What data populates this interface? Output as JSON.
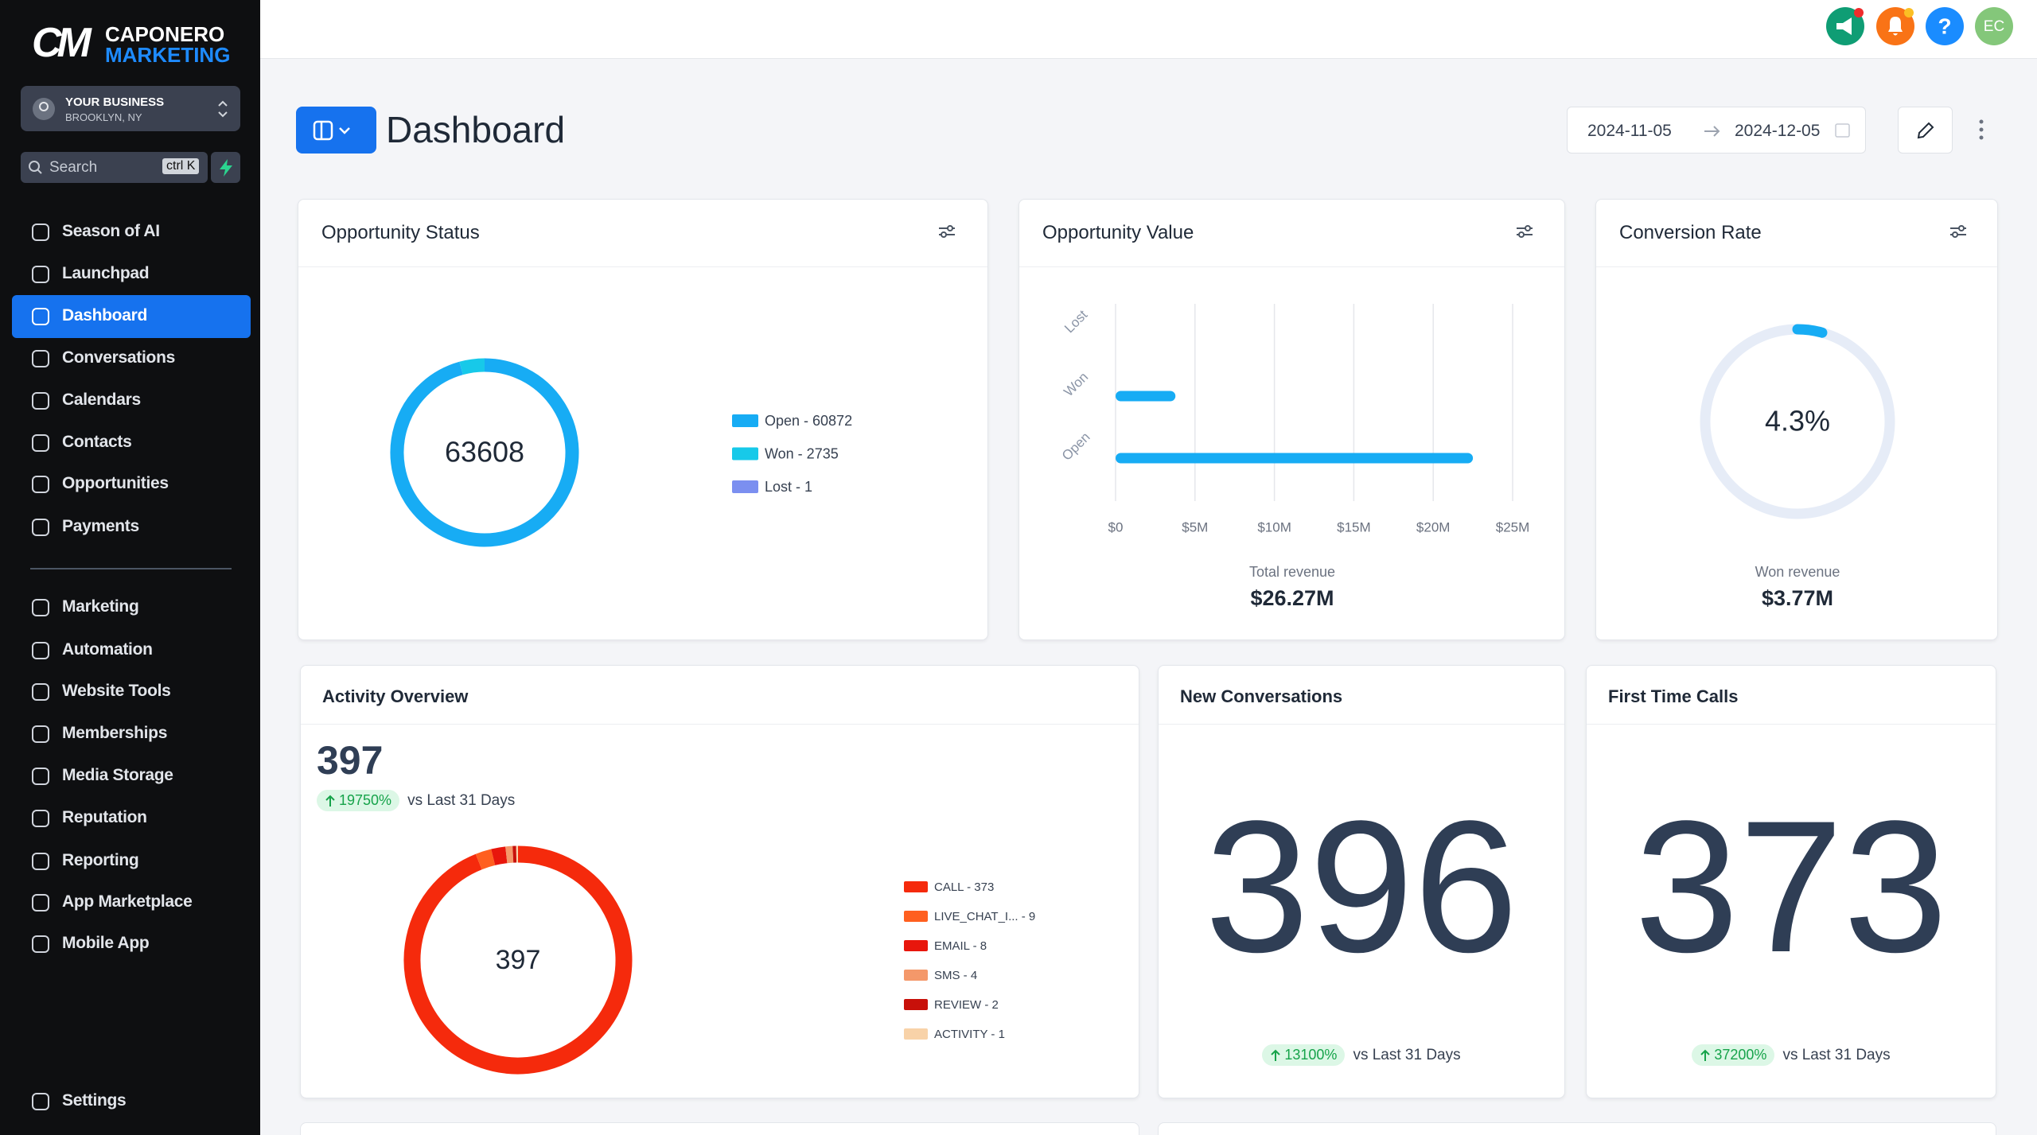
{
  "sidebar": {
    "brand": {
      "mark": "CM",
      "name_top": "CAPONERO",
      "name_bottom": "MARKETING"
    },
    "account": {
      "name": "YOUR BUSINESS",
      "location": "BROOKLYN, NY"
    },
    "search": {
      "placeholder": "Search",
      "shortcut": "ctrl K"
    },
    "nav": [
      "Season of AI",
      "Launchpad",
      "Dashboard",
      "Conversations",
      "Calendars",
      "Contacts",
      "Opportunities",
      "Payments"
    ],
    "nav_active": 2,
    "nav_secondary": [
      "Marketing",
      "Automation",
      "Website Tools",
      "Memberships",
      "Media Storage",
      "Reputation",
      "Reporting",
      "App Marketplace",
      "Mobile App"
    ],
    "settings": "Settings"
  },
  "topbar": {
    "help": "?",
    "avatar": "EC"
  },
  "header": {
    "title": "Dashboard",
    "date_start": "2024-11-05",
    "date_end": "2024-12-05"
  },
  "opportunity_status": {
    "title": "Opportunity Status",
    "chart_data": {
      "type": "donut",
      "total": 63608,
      "labels": [
        "Open - 60872",
        "Won - 2735",
        "Lost - 1"
      ],
      "values": [
        60872,
        2735,
        1
      ],
      "colors": [
        "#17acf4",
        "#17c9e9",
        "#7b8ff0"
      ]
    }
  },
  "opportunity_value": {
    "title": "Opportunity Value",
    "chart_data": {
      "type": "bar",
      "orientation": "horizontal",
      "categories": [
        "Open",
        "Won",
        "Lost"
      ],
      "values": [
        22500000,
        3770000,
        0
      ],
      "color": "#17acf4",
      "xlim": [
        0,
        25000000
      ],
      "xticks": [
        {
          "value": 0,
          "label": "$0"
        },
        {
          "value": 5000000,
          "label": "$5M"
        },
        {
          "value": 10000000,
          "label": "$10M"
        },
        {
          "value": 15000000,
          "label": "$15M"
        },
        {
          "value": 20000000,
          "label": "$20M"
        },
        {
          "value": 25000000,
          "label": "$25M"
        }
      ],
      "grid": true,
      "footer_label": "Total revenue",
      "footer_value": "$26.27M"
    }
  },
  "conversion_rate": {
    "title": "Conversion Rate",
    "chart_data": {
      "type": "gauge",
      "value": 4.3,
      "value_label": "4.3%",
      "range": [
        0,
        100
      ],
      "color": "#17acf4",
      "track_color": "#e6ecf7",
      "footer_label": "Won revenue",
      "footer_value": "$3.77M"
    }
  },
  "activity_overview": {
    "title": "Activity Overview",
    "total": 397,
    "change": "19750%",
    "comparison": "vs Last 31 Days",
    "chart_data": {
      "type": "donut",
      "total": 397,
      "labels": [
        "CALL - 373",
        "LIVE_CHAT_I... - 9",
        "EMAIL - 8",
        "SMS - 4",
        "REVIEW - 2",
        "ACTIVITY - 1"
      ],
      "values": [
        373,
        9,
        8,
        4,
        2,
        1
      ],
      "colors": [
        "#f52a0c",
        "#ff5f1f",
        "#e8160c",
        "#f4986a",
        "#c8100a",
        "#f8d2a8"
      ]
    }
  },
  "new_conversations": {
    "title": "New Conversations",
    "value": 396,
    "change": "13100%",
    "comparison": "vs Last 31 Days"
  },
  "first_time_calls": {
    "title": "First Time Calls",
    "value": 373,
    "change": "37200%",
    "comparison": "vs Last 31 Days"
  }
}
